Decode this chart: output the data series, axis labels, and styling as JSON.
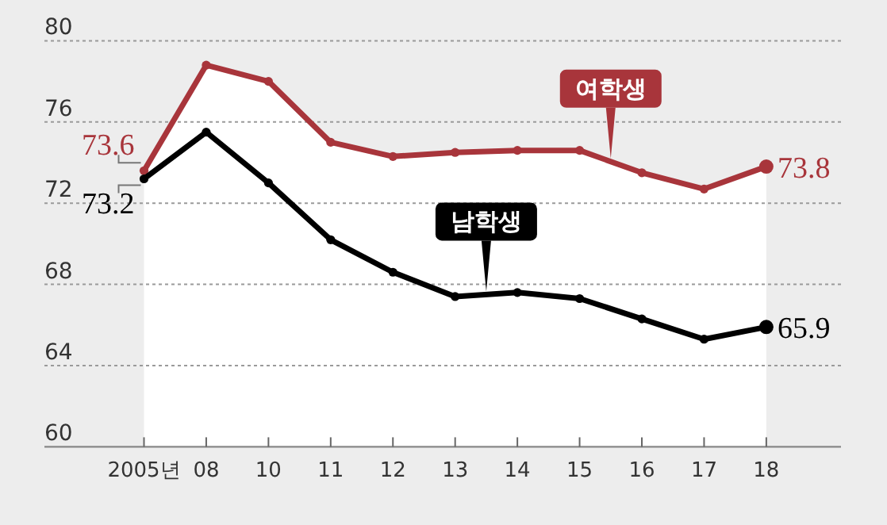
{
  "chart_data": {
    "type": "line",
    "categories": [
      "2005년",
      "08",
      "10",
      "11",
      "12",
      "13",
      "14",
      "15",
      "16",
      "17",
      "18"
    ],
    "series": [
      {
        "name": "여학생",
        "type": "area",
        "color": "#a8353b",
        "values": [
          73.6,
          78.8,
          78.0,
          75.0,
          74.3,
          74.5,
          74.6,
          74.6,
          73.5,
          72.7,
          73.8
        ],
        "value_labels": [
          "73.6",
          null,
          null,
          null,
          null,
          null,
          null,
          null,
          null,
          null,
          "73.8"
        ]
      },
      {
        "name": "남학생",
        "color": "#000000",
        "values": [
          73.2,
          75.5,
          73.0,
          70.2,
          68.6,
          67.4,
          67.6,
          67.3,
          66.3,
          65.3,
          65.9
        ],
        "value_labels": [
          "73.2",
          null,
          null,
          null,
          null,
          null,
          null,
          null,
          null,
          null,
          "65.9"
        ]
      }
    ],
    "ylim": [
      60,
      80
    ],
    "yticks": [
      60,
      64,
      68,
      72,
      76,
      80
    ],
    "grid": "y",
    "marker": "circle",
    "line_style": "solid"
  }
}
